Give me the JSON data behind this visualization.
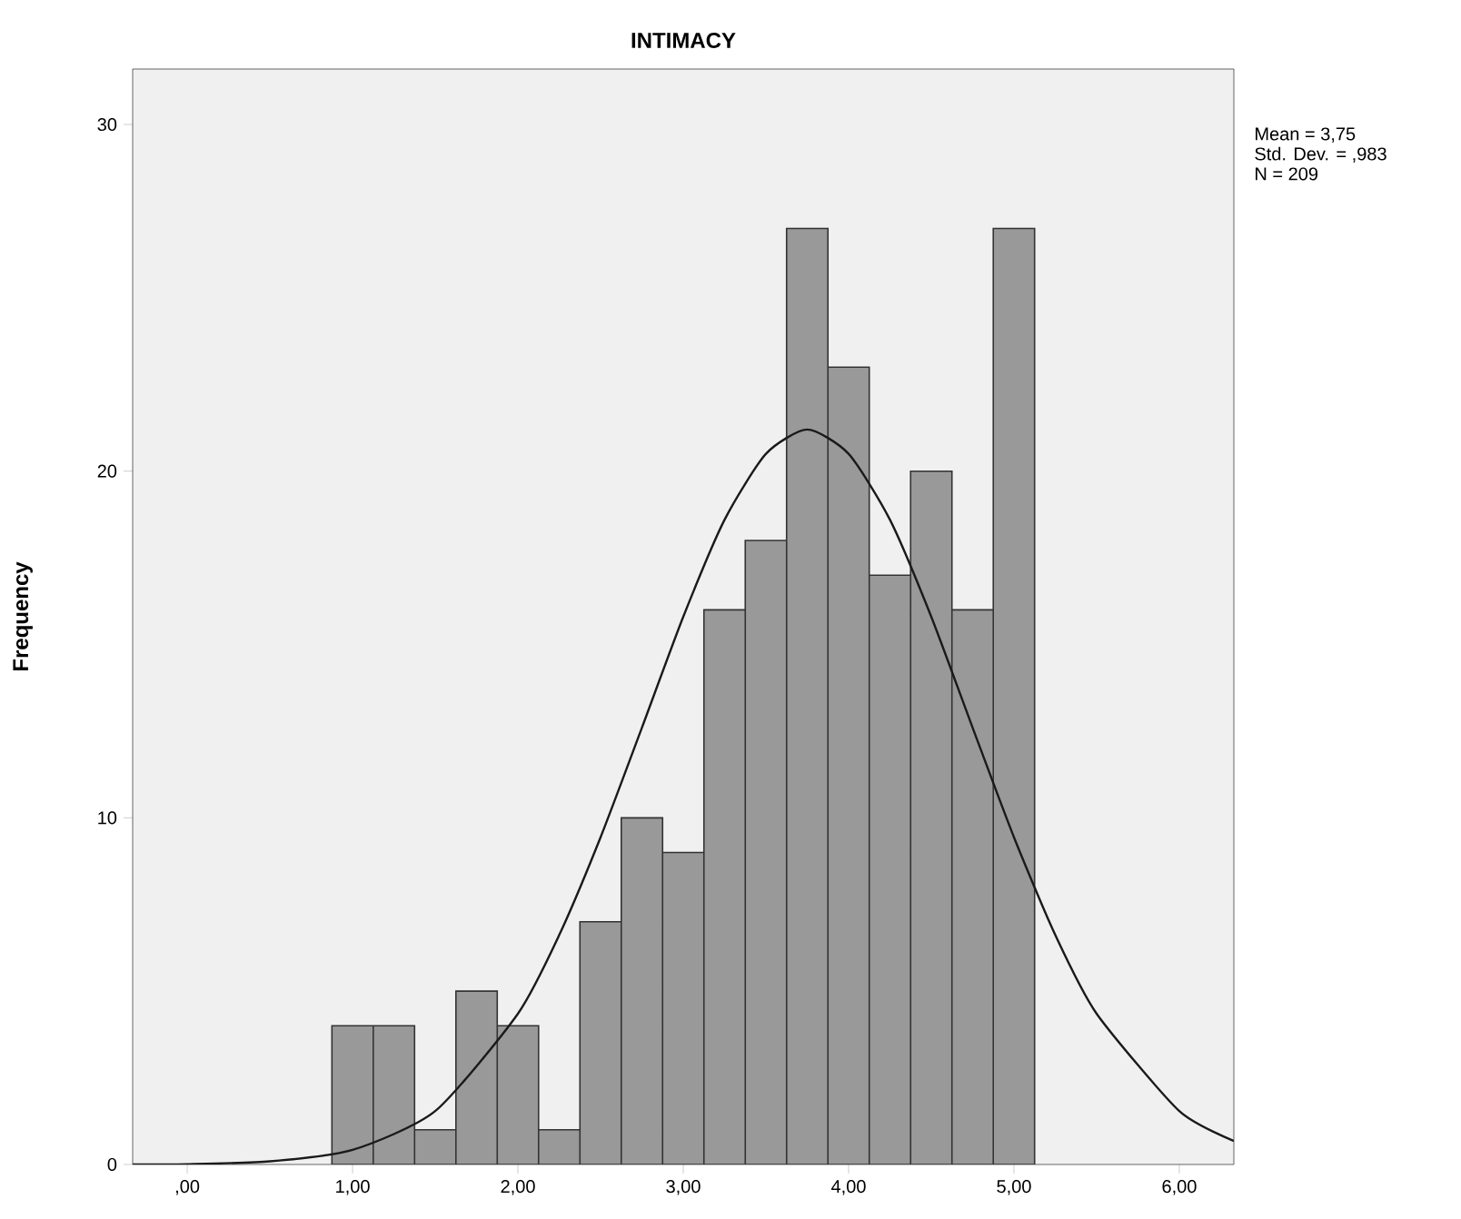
{
  "chart_data": {
    "type": "histogram",
    "title": "INTIMACY",
    "ylabel": "Frequency",
    "bins": [
      0.875,
      1.125,
      1.375,
      1.625,
      1.875,
      2.125,
      2.375,
      2.625,
      2.875,
      3.125,
      3.375,
      3.625,
      3.875,
      4.125,
      4.375,
      4.625,
      4.875,
      5.125
    ],
    "values": [
      4,
      4,
      1,
      5,
      4,
      1,
      7,
      10,
      9,
      16,
      18,
      27,
      23,
      17,
      20,
      16,
      27
    ],
    "color": "#999999",
    "series": [
      {
        "type": "line",
        "color": "#1a1a1a",
        "x": [
          -0.33,
          0,
          0.5,
          1,
          1.5,
          2,
          2.25,
          2.5,
          2.75,
          3,
          3.25,
          3.5,
          3.75,
          4,
          4.25,
          4.5,
          4.75,
          5,
          5.25,
          5.5,
          6,
          6.33
        ],
        "values": [
          0.0,
          0.01,
          0.09,
          0.42,
          1.54,
          4.35,
          6.62,
          9.44,
          12.6,
          15.8,
          18.6,
          20.5,
          21.2,
          20.5,
          18.6,
          15.8,
          12.6,
          9.44,
          6.62,
          4.35,
          1.54,
          0.68
        ]
      }
    ],
    "xlim": [
      -0.33,
      6.33
    ],
    "ylim": [
      0,
      31.6
    ],
    "xticks": [
      {
        "value": 0,
        "label": ",00"
      },
      {
        "value": 1,
        "label": "1,00"
      },
      {
        "value": 2,
        "label": "2,00"
      },
      {
        "value": 3,
        "label": "3,00"
      },
      {
        "value": 4,
        "label": "4,00"
      },
      {
        "value": 5,
        "label": "5,00"
      },
      {
        "value": 6,
        "label": "6,00"
      }
    ],
    "yticks": [
      0,
      10,
      20,
      30
    ],
    "annotations": [
      "Mean = 3,75",
      "Std. Dev. = ,983",
      "N = 209"
    ]
  }
}
